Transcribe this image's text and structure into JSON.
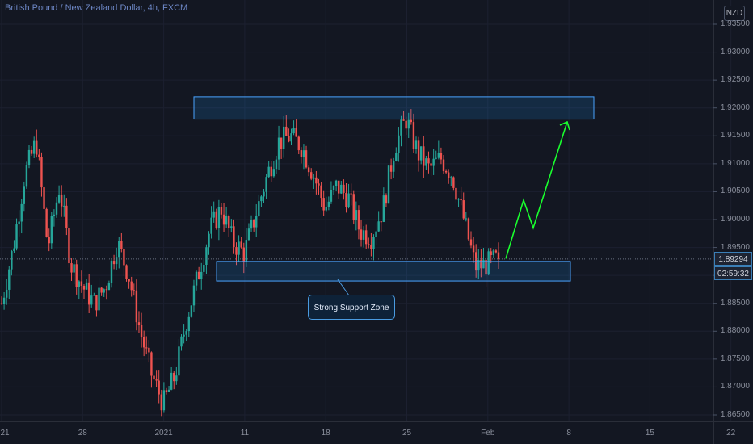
{
  "header": {
    "symbol_title": "British Pound / New Zealand Dollar, 4h, FXCM"
  },
  "currency_badge": "NZD",
  "last_price": "1.89294",
  "countdown": "02:59:32",
  "annotation": "Strong Support Zone",
  "colors": {
    "background": "#131722",
    "up": "#26a69a",
    "down": "#ef5350",
    "zone": "#2962ff",
    "arrow": "#19ff2e",
    "price_tag_border": "#3b7fb7"
  },
  "chart_data": {
    "type": "candlestick",
    "symbol": "GBPNZD",
    "timeframe": "4h",
    "ylim": [
      1.865,
      1.935
    ],
    "y_ticks": [
      "1.93500",
      "1.93000",
      "1.92500",
      "1.92000",
      "1.91500",
      "1.91000",
      "1.90500",
      "1.90000",
      "1.89500",
      "1.89000",
      "1.88500",
      "1.88000",
      "1.87500",
      "1.87000",
      "1.86500"
    ],
    "x_ticks": [
      "21",
      "28",
      "2021",
      "11",
      "18",
      "25",
      "Feb",
      "8",
      "15",
      "22"
    ],
    "last_price": 1.89294,
    "resistance_zone": {
      "low": 1.918,
      "high": 1.922
    },
    "support_zone": {
      "low": 1.889,
      "high": 1.8925
    },
    "projection": [
      1.893,
      1.9035,
      1.8985,
      1.9175
    ],
    "close_path": [
      1.885,
      1.895,
      1.908,
      1.914,
      1.895,
      1.906,
      1.892,
      1.888,
      1.885,
      1.888,
      1.896,
      1.89,
      1.88,
      1.872,
      1.867,
      1.872,
      1.882,
      1.89,
      1.898,
      1.902,
      1.896,
      1.894,
      1.901,
      1.908,
      1.914,
      1.915,
      1.913,
      1.908,
      1.902,
      1.906,
      1.904,
      1.898,
      1.897,
      1.902,
      1.913,
      1.918,
      1.912,
      1.909,
      1.911,
      1.908,
      1.9,
      1.8915,
      1.892,
      1.893
    ]
  }
}
